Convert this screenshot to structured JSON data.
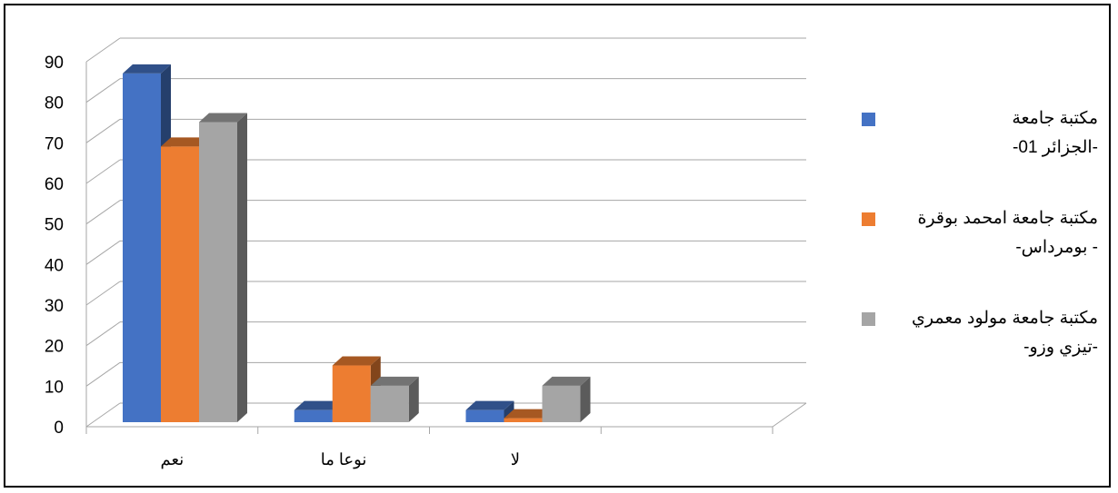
{
  "chart_data": {
    "type": "bar",
    "categories": [
      "نعم",
      "نوعا ما",
      "لا"
    ],
    "series": [
      {
        "name": "مكتبة جامعة\n-الجزائر 01-",
        "values": [
          88,
          5,
          5
        ],
        "color": "#4472C4"
      },
      {
        "name": "مكتبة جامعة امحمد بوقرة\n- بومرداس-",
        "values": [
          70,
          16,
          3
        ],
        "color": "#ED7D31"
      },
      {
        "name": "مكتبة جامعة مولود معمري\n-تيزي وزو-",
        "values": [
          76,
          11,
          11
        ],
        "color": "#A5A5A5"
      }
    ],
    "yticks": [
      "0",
      "10",
      "20",
      "30",
      "40",
      "50",
      "60",
      "70",
      "80",
      "90"
    ],
    "ylim": [
      0,
      90
    ],
    "grid": true,
    "legend_position": "right",
    "style": "3d-clustered-column"
  }
}
